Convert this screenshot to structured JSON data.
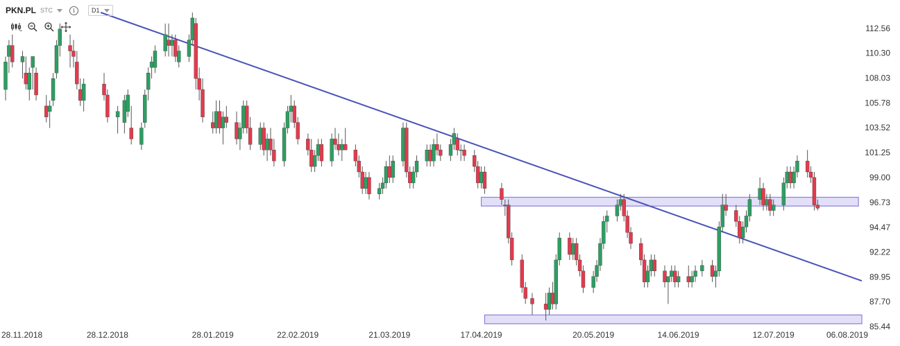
{
  "header": {
    "symbol": "PKN.PL",
    "market": "STC",
    "interval": "D1",
    "info_glyph": "i"
  },
  "toolbar": {
    "icons": [
      "chart-type-icon",
      "zoom-out-icon",
      "zoom-in-icon",
      "pan-icon"
    ]
  },
  "colors": {
    "bullish": "#2e9e62",
    "bearish": "#e23b4e",
    "trendline": "#4a52b8",
    "zone_fill": "#d8d4f6",
    "zone_stroke": "#8b80d8",
    "axis_text": "#333333",
    "wick": "#555555"
  },
  "chart_data": {
    "type": "candlestick",
    "title": "",
    "xlabel": "",
    "ylabel": "",
    "x_ticks": [
      "28.11.2018",
      "28.12.2018",
      "28.01.2019",
      "22.02.2019",
      "21.03.2019",
      "17.04.2019",
      "20.05.2019",
      "14.06.2019",
      "12.07.2019",
      "06.08.2019"
    ],
    "y_ticks": [
      112.56,
      110.3,
      108.03,
      105.78,
      103.52,
      101.25,
      99.0,
      96.73,
      94.47,
      92.22,
      89.95,
      87.7,
      85.44
    ],
    "y_tick_labels": [
      "112.56",
      "110.30",
      "108.03",
      "105.78",
      "103.52",
      "101.25",
      "99.00",
      "96.73",
      "94.47",
      "92.22",
      "89.95",
      "87.70",
      "85.44"
    ],
    "ylim": [
      85.0,
      114.0
    ],
    "date_range": [
      "2018-11-28",
      "2019-08-07"
    ],
    "grid": false,
    "candles": [
      [
        "2018-11-28",
        107,
        110,
        106,
        109.5
      ],
      [
        "2018-11-29",
        110,
        111.5,
        108.5,
        111
      ],
      [
        "2018-11-30",
        111,
        112,
        109,
        109.5
      ],
      [
        "2018-12-03",
        109.5,
        110.5,
        108,
        110
      ],
      [
        "2018-12-04",
        108.5,
        110,
        107,
        107.5
      ],
      [
        "2018-12-05",
        107,
        109,
        106,
        108.5
      ],
      [
        "2018-12-06",
        109,
        110,
        107,
        110
      ],
      [
        "2018-12-07",
        108.5,
        109,
        106,
        106.5
      ],
      [
        "2018-12-10",
        105.5,
        106.5,
        104,
        104.5
      ],
      [
        "2018-12-11",
        105,
        106,
        103.5,
        105.5
      ],
      [
        "2018-12-12",
        106,
        108.5,
        105.5,
        108
      ],
      [
        "2018-12-13",
        108.5,
        111.5,
        108,
        111
      ],
      [
        "2018-12-14",
        111,
        113,
        110,
        112.5
      ],
      [
        "2018-12-17",
        111,
        112,
        109,
        110.5
      ],
      [
        "2018-12-18",
        110.5,
        111.5,
        109,
        110
      ],
      [
        "2018-12-19",
        109.5,
        110.5,
        107,
        107.5
      ],
      [
        "2018-12-20",
        107,
        108,
        105.5,
        106
      ],
      [
        "2018-12-21",
        106,
        108,
        105,
        107.5
      ],
      [
        "2018-12-27",
        107.5,
        108.5,
        106,
        106.5
      ],
      [
        "2018-12-28",
        106.5,
        107,
        104,
        104.5
      ],
      [
        "2018-12-31",
        104.5,
        105.5,
        103,
        105
      ],
      [
        "2019-01-02",
        104,
        106.5,
        103,
        106
      ],
      [
        "2019-01-03",
        105,
        107,
        104.5,
        106.5
      ],
      [
        "2019-01-04",
        103.5,
        105.5,
        102,
        102.5
      ],
      [
        "2019-01-07",
        102,
        104,
        101.5,
        103.5
      ],
      [
        "2019-01-08",
        104,
        107,
        103.5,
        106.5
      ],
      [
        "2019-01-09",
        107,
        109,
        106,
        108.5
      ],
      [
        "2019-01-10",
        109,
        110,
        108,
        109.5
      ],
      [
        "2019-01-11",
        109,
        111,
        108.5,
        110.5
      ],
      [
        "2019-01-14",
        110.5,
        113,
        110,
        112
      ],
      [
        "2019-01-15",
        111.5,
        113,
        110,
        111
      ],
      [
        "2019-01-16",
        111,
        112,
        110,
        111.5
      ],
      [
        "2019-01-17",
        111.5,
        112,
        109.5,
        110
      ],
      [
        "2019-01-18",
        109.5,
        111,
        109,
        110.5
      ],
      [
        "2019-01-21",
        110,
        112,
        109.5,
        111.5
      ],
      [
        "2019-01-22",
        111.5,
        114,
        111,
        113.5
      ],
      [
        "2019-01-23",
        113,
        113.5,
        107,
        108
      ],
      [
        "2019-01-24",
        108,
        109,
        106,
        107
      ],
      [
        "2019-01-25",
        107,
        108,
        104,
        104.5
      ],
      [
        "2019-01-28",
        104,
        105,
        103,
        103.5
      ],
      [
        "2019-01-29",
        103.5,
        106,
        103,
        105
      ],
      [
        "2019-01-30",
        105,
        106,
        103,
        103.5
      ],
      [
        "2019-01-31",
        103.5,
        105,
        102,
        104.5
      ],
      [
        "2019-02-01",
        104.5,
        105.5,
        103.5,
        104
      ],
      [
        "2019-02-04",
        104,
        105,
        102,
        102.5
      ],
      [
        "2019-02-05",
        102.5,
        104,
        101.5,
        103.5
      ],
      [
        "2019-02-06",
        103.5,
        106,
        103,
        105.5
      ],
      [
        "2019-02-07",
        105.5,
        106,
        103,
        103.5
      ],
      [
        "2019-02-08",
        103.5,
        104.5,
        101.5,
        102
      ],
      [
        "2019-02-11",
        102,
        104,
        101.5,
        103.5
      ],
      [
        "2019-02-12",
        103.5,
        104,
        101,
        101.5
      ],
      [
        "2019-02-13",
        101.5,
        103,
        100.5,
        102.5
      ],
      [
        "2019-02-14",
        102.5,
        103.5,
        101,
        101.5
      ],
      [
        "2019-02-15",
        101.5,
        102.5,
        100,
        100.5
      ],
      [
        "2019-02-18",
        100.5,
        104,
        100,
        103.5
      ],
      [
        "2019-02-19",
        103.5,
        105.5,
        103,
        105
      ],
      [
        "2019-02-20",
        105,
        106.5,
        104,
        105.5
      ],
      [
        "2019-02-21",
        105.5,
        106,
        103.5,
        104
      ],
      [
        "2019-02-22",
        104,
        104.5,
        102,
        102.5
      ],
      [
        "2019-02-25",
        102.5,
        103,
        101,
        101.5
      ],
      [
        "2019-02-26",
        101.5,
        102.5,
        99.5,
        100
      ],
      [
        "2019-02-27",
        100,
        101.5,
        99.5,
        101
      ],
      [
        "2019-02-28",
        101,
        102.5,
        100.5,
        102
      ],
      [
        "2019-03-01",
        102,
        102.5,
        100,
        100.5
      ],
      [
        "2019-03-04",
        100.5,
        103,
        100,
        102.5
      ],
      [
        "2019-03-05",
        102.5,
        103.5,
        101.5,
        102
      ],
      [
        "2019-03-06",
        102,
        103,
        101,
        101.5
      ],
      [
        "2019-03-07",
        101.5,
        102.5,
        100.5,
        102
      ],
      [
        "2019-03-08",
        102,
        103.5,
        101.5,
        101.5
      ],
      [
        "2019-03-11",
        101.5,
        102,
        100,
        100.5
      ],
      [
        "2019-03-12",
        100.5,
        101,
        99,
        99.5
      ],
      [
        "2019-03-13",
        99.5,
        100,
        97.5,
        98
      ],
      [
        "2019-03-14",
        98,
        99.5,
        97.5,
        99
      ],
      [
        "2019-03-15",
        99,
        99.5,
        97,
        97.5
      ],
      [
        "2019-03-18",
        97.5,
        98.5,
        97,
        98
      ],
      [
        "2019-03-19",
        98,
        99,
        97.5,
        98.5
      ],
      [
        "2019-03-20",
        98.5,
        100.5,
        98,
        100
      ],
      [
        "2019-03-21",
        100,
        101,
        98.5,
        99
      ],
      [
        "2019-03-22",
        99,
        101,
        98.5,
        100.5
      ],
      [
        "2019-03-25",
        100.5,
        104,
        100,
        103.5
      ],
      [
        "2019-03-26",
        103.5,
        104,
        99,
        99.5
      ],
      [
        "2019-03-27",
        99.5,
        100,
        98,
        98.5
      ],
      [
        "2019-03-28",
        98.5,
        100,
        98,
        99.5
      ],
      [
        "2019-03-29",
        99.5,
        101,
        99,
        100.5
      ],
      [
        "2019-04-01",
        100.5,
        102,
        100,
        101.5
      ],
      [
        "2019-04-02",
        101.5,
        102,
        100,
        100.5
      ],
      [
        "2019-04-03",
        100.5,
        102.5,
        100,
        102
      ],
      [
        "2019-04-04",
        102,
        103,
        101,
        101.5
      ],
      [
        "2019-04-05",
        101.5,
        102,
        100.5,
        101
      ],
      [
        "2019-04-08",
        101,
        102.5,
        100.5,
        102
      ],
      [
        "2019-04-09",
        102,
        103.5,
        101.5,
        103
      ],
      [
        "2019-04-10",
        102.5,
        103,
        101,
        101.5
      ],
      [
        "2019-04-11",
        101.5,
        102,
        100.5,
        101.5
      ],
      [
        "2019-04-12",
        101.5,
        102,
        100.5,
        101
      ],
      [
        "2019-04-15",
        101,
        101.5,
        99.5,
        100
      ],
      [
        "2019-04-16",
        100,
        100.5,
        98,
        98.5
      ],
      [
        "2019-04-17",
        98.5,
        100,
        98,
        99.5
      ],
      [
        "2019-04-18",
        99.5,
        100,
        97.5,
        98
      ],
      [
        "2019-04-23",
        98,
        98.5,
        96.5,
        97
      ],
      [
        "2019-04-24",
        96.5,
        97,
        95.5,
        96.5
      ],
      [
        "2019-04-25",
        96.5,
        97,
        93,
        93.5
      ],
      [
        "2019-04-26",
        93.5,
        94,
        91,
        91.5
      ],
      [
        "2019-04-29",
        91.5,
        92,
        88.5,
        89
      ],
      [
        "2019-04-30",
        89,
        89.5,
        87.5,
        88
      ],
      [
        "2019-05-02",
        88,
        88.5,
        86.5,
        87.5
      ],
      [
        "2019-05-06",
        87.5,
        88.5,
        86,
        87
      ],
      [
        "2019-05-07",
        87,
        89,
        86.5,
        88.5
      ],
      [
        "2019-05-08",
        88.5,
        89.5,
        87,
        87.5
      ],
      [
        "2019-05-09",
        87.5,
        92,
        87,
        91.5
      ],
      [
        "2019-05-10",
        91.5,
        94,
        91,
        93.5
      ],
      [
        "2019-05-13",
        93.5,
        94,
        91.5,
        92
      ],
      [
        "2019-05-14",
        92,
        93.5,
        91.5,
        93
      ],
      [
        "2019-05-15",
        93,
        93.5,
        91,
        91.5
      ],
      [
        "2019-05-16",
        91.5,
        92,
        90,
        90.5
      ],
      [
        "2019-05-17",
        90.5,
        91,
        88.5,
        89
      ],
      [
        "2019-05-20",
        89,
        90.5,
        88.5,
        90
      ],
      [
        "2019-05-21",
        90,
        91.5,
        89.5,
        91
      ],
      [
        "2019-05-22",
        91,
        93.5,
        90.5,
        93
      ],
      [
        "2019-05-23",
        93,
        95.5,
        92.5,
        95
      ],
      [
        "2019-05-24",
        95,
        96,
        94,
        95.5
      ],
      [
        "2019-05-27",
        95.5,
        97,
        95,
        96.5
      ],
      [
        "2019-05-28",
        96.5,
        97.5,
        96,
        97
      ],
      [
        "2019-05-29",
        97,
        97.5,
        95,
        95.5
      ],
      [
        "2019-05-30",
        95.5,
        96,
        93.5,
        94
      ],
      [
        "2019-05-31",
        94,
        94.5,
        92.5,
        93
      ],
      [
        "2019-06-03",
        93,
        93.5,
        91,
        91.5
      ],
      [
        "2019-06-04",
        91.5,
        92,
        89,
        89.5
      ],
      [
        "2019-06-05",
        89.5,
        91,
        89,
        90.5
      ],
      [
        "2019-06-06",
        90.5,
        92,
        90,
        91.5
      ],
      [
        "2019-06-07",
        91.5,
        92,
        90,
        90.5
      ],
      [
        "2019-06-10",
        90.5,
        91,
        89,
        89.5
      ],
      [
        "2019-06-11",
        89.5,
        90,
        87.5,
        90
      ],
      [
        "2019-06-12",
        90,
        91,
        89.5,
        90.5
      ],
      [
        "2019-06-13",
        90.5,
        91,
        89,
        89.5
      ],
      [
        "2019-06-14",
        89.5,
        90.5,
        89,
        90
      ],
      [
        "2019-06-17",
        90,
        91,
        89,
        89.5
      ],
      [
        "2019-06-18",
        89.5,
        90.5,
        89,
        90
      ],
      [
        "2019-06-19",
        90,
        91,
        89.5,
        90.5
      ],
      [
        "2019-06-21",
        90.5,
        91.5,
        90,
        91
      ],
      [
        "2019-06-24",
        91,
        91.5,
        89.5,
        90
      ],
      [
        "2019-06-25",
        90,
        91,
        89,
        90.5
      ],
      [
        "2019-06-26",
        90.5,
        95,
        90,
        94.5
      ],
      [
        "2019-06-27",
        94.5,
        97.5,
        94,
        96.5
      ],
      [
        "2019-06-28",
        96.5,
        97.5,
        95.5,
        96
      ],
      [
        "2019-07-01",
        96,
        96.5,
        94.5,
        95
      ],
      [
        "2019-07-02",
        95,
        95.5,
        93,
        93.5
      ],
      [
        "2019-07-03",
        93.5,
        95,
        93,
        94.5
      ],
      [
        "2019-07-04",
        94.5,
        96,
        94,
        95.5
      ],
      [
        "2019-07-05",
        95.5,
        97.5,
        95,
        97
      ],
      [
        "2019-07-08",
        97,
        99,
        96.5,
        98
      ],
      [
        "2019-07-09",
        98,
        98.5,
        96,
        96.5
      ],
      [
        "2019-07-10",
        96.5,
        97.5,
        96,
        97
      ],
      [
        "2019-07-11",
        97,
        97.5,
        95.5,
        96
      ],
      [
        "2019-07-12",
        96,
        97,
        95.5,
        96.5
      ],
      [
        "2019-07-15",
        96.5,
        99,
        96,
        98.5
      ],
      [
        "2019-07-16",
        98.5,
        100,
        98,
        99.5
      ],
      [
        "2019-07-17",
        99.5,
        100,
        98,
        98.5
      ],
      [
        "2019-07-18",
        98.5,
        100,
        98,
        99.5
      ],
      [
        "2019-07-19",
        99.5,
        101,
        99,
        100.5
      ],
      [
        "2019-07-22",
        100.5,
        101.5,
        99,
        99.5
      ],
      [
        "2019-07-23",
        99.5,
        100,
        98.5,
        99
      ],
      [
        "2019-07-24",
        99,
        99.5,
        96,
        96.5
      ],
      [
        "2019-07-25",
        96.5,
        97,
        96,
        96.2
      ]
    ],
    "trendline": {
      "from": [
        "2018-12-26",
        114.0
      ],
      "to": [
        "2019-08-07",
        89.6
      ]
    },
    "zones": [
      {
        "from": "2019-04-17",
        "to": "2019-08-06",
        "low": 96.4,
        "high": 97.2
      },
      {
        "from": "2019-04-18",
        "to": "2019-08-07",
        "low": 85.7,
        "high": 86.5
      }
    ]
  }
}
